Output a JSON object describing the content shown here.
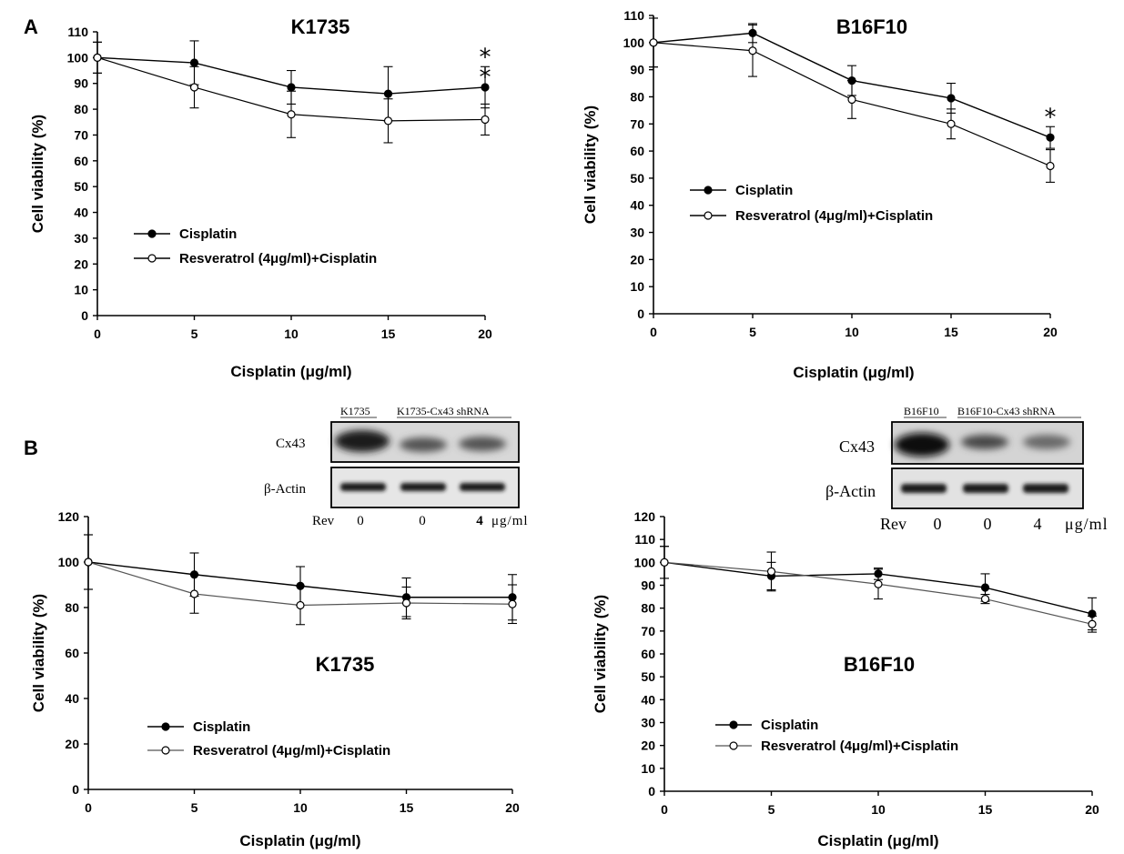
{
  "panels": {
    "a": "A",
    "b": "B"
  },
  "chart_data": [
    {
      "id": "A1",
      "type": "line",
      "title": "K1735",
      "xlabel": "Cisplatin (μg/ml)",
      "ylabel": "Cell viability (%)",
      "x": [
        0,
        5,
        10,
        15,
        20
      ],
      "xlim": [
        0,
        20
      ],
      "ylim": [
        0,
        110
      ],
      "ystep": 10,
      "series": [
        {
          "name": "Cisplatin",
          "marker": "filled",
          "values": [
            100,
            98,
            88.5,
            86,
            88.5
          ],
          "errors": [
            6,
            8.5,
            6.5,
            10.5,
            8
          ]
        },
        {
          "name": "Resveratrol (4μg/ml)+Cisplatin",
          "marker": "open",
          "values": [
            100,
            88.5,
            78,
            75.5,
            76
          ],
          "errors": [
            6,
            8,
            9,
            8.5,
            6
          ]
        }
      ],
      "legend": "bottom-left",
      "annotations": [
        {
          "x": 20,
          "text": "**"
        }
      ]
    },
    {
      "id": "A2",
      "type": "line",
      "title": "B16F10",
      "xlabel": "Cisplatin (μg/ml)",
      "ylabel": "Cell viability (%)",
      "x": [
        0,
        5,
        10,
        15,
        20
      ],
      "xlim": [
        0,
        20
      ],
      "ylim": [
        0,
        110
      ],
      "ystep": 10,
      "series": [
        {
          "name": "Cisplatin",
          "marker": "filled",
          "values": [
            100,
            103.5,
            86,
            79.5,
            65
          ],
          "errors": [
            9,
            3.5,
            5.5,
            5.5,
            4
          ]
        },
        {
          "name": "Resveratrol (4μg/ml)+Cisplatin",
          "marker": "open",
          "values": [
            100,
            97,
            79,
            70,
            54.5
          ],
          "errors": [
            9,
            9.5,
            7,
            5.5,
            6
          ]
        }
      ],
      "legend": "middle-left",
      "annotations": [
        {
          "x": 20,
          "text": "*"
        }
      ]
    },
    {
      "id": "B1",
      "type": "line",
      "title": "K1735",
      "xlabel": "Cisplatin (μg/ml)",
      "ylabel": "Cell viability (%)",
      "x": [
        0,
        5,
        10,
        15,
        20
      ],
      "xlim": [
        0,
        20
      ],
      "ylim": [
        0,
        120
      ],
      "ystep": 20,
      "series": [
        {
          "name": "Cisplatin",
          "marker": "filled",
          "values": [
            100,
            94.5,
            89.5,
            84.5,
            84.5
          ],
          "errors": [
            12,
            9.5,
            8.5,
            8.5,
            10
          ]
        },
        {
          "name": "Resveratrol (4μg/ml)+Cisplatin",
          "marker": "open",
          "values": [
            100,
            86,
            81,
            82,
            81.5
          ],
          "errors": [
            12,
            8.5,
            8.5,
            7,
            8.5
          ]
        }
      ],
      "legend": "bottom-left",
      "annotations": []
    },
    {
      "id": "B2",
      "type": "line",
      "title": "B16F10",
      "xlabel": "Cisplatin (μg/ml)",
      "ylabel": "Cell viability (%)",
      "x": [
        0,
        5,
        10,
        15,
        20
      ],
      "xlim": [
        0,
        20
      ],
      "ylim": [
        0,
        120
      ],
      "ystep": 10,
      "series": [
        {
          "name": "Cisplatin",
          "marker": "filled",
          "values": [
            100,
            94,
            95,
            89,
            77.5
          ],
          "errors": [
            7,
            6,
            2.5,
            6,
            7
          ]
        },
        {
          "name": "Resveratrol (4μg/ml)+Cisplatin",
          "marker": "open",
          "values": [
            100,
            96,
            90.5,
            84,
            73
          ],
          "errors": [
            7,
            8.5,
            6.5,
            2,
            3.5
          ]
        }
      ],
      "legend": "bottom-left",
      "annotations": []
    }
  ],
  "blots": [
    {
      "id": "blot1",
      "header_left": "K1735",
      "header_right": "K1735-Cx43 shRNA",
      "rows": [
        "Cx43",
        "β-Actin"
      ],
      "rev_label": "Rev",
      "rev_values": [
        "0",
        "0",
        "4"
      ],
      "unit": "μg/ml"
    },
    {
      "id": "blot2",
      "header_left": "B16F10",
      "header_right": "B16F10-Cx43 shRNA",
      "rows": [
        "Cx43",
        "β-Actin"
      ],
      "rev_label": "Rev",
      "rev_values": [
        "0",
        "0",
        "4"
      ],
      "unit": "μg/ml"
    }
  ]
}
